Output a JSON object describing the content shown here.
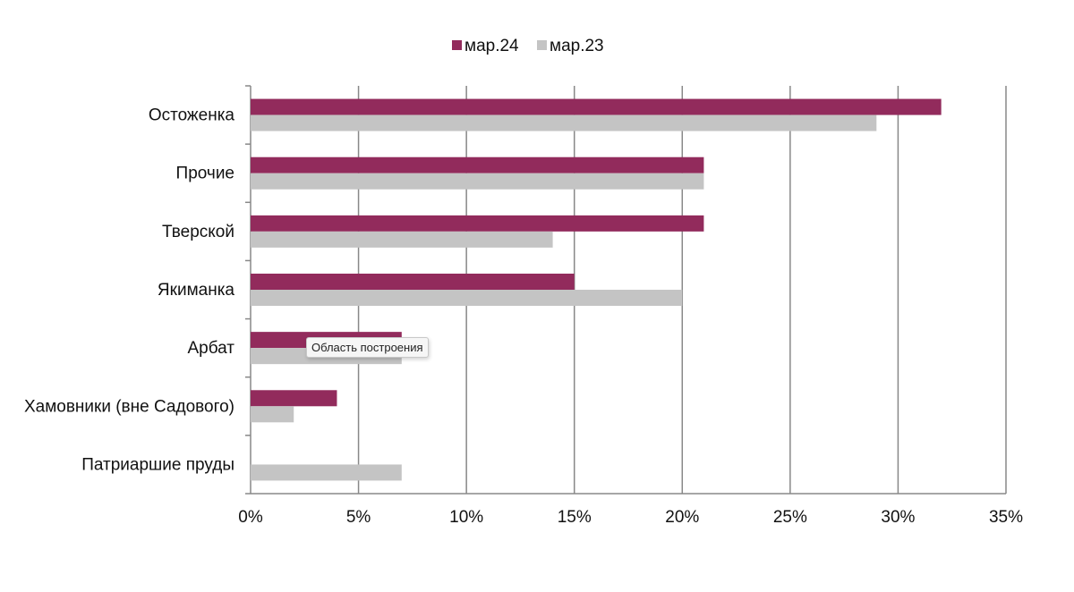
{
  "chart_data": {
    "type": "bar",
    "orientation": "horizontal",
    "title": "",
    "xlabel": "",
    "ylabel": "",
    "categories": [
      "Остоженка",
      "Прочие",
      "Тверской",
      "Якиманка",
      "Арбат",
      "Хамовники (вне Садового)",
      "Патриаршие пруды"
    ],
    "series": [
      {
        "name": "мар.24",
        "color": "#922b5c",
        "values": [
          32,
          21,
          21,
          15,
          7,
          4,
          0
        ]
      },
      {
        "name": "мар.23",
        "color": "#c4c4c4",
        "values": [
          29,
          21,
          14,
          20,
          7,
          2,
          7
        ]
      }
    ],
    "xlim": [
      0,
      35
    ],
    "xticks": [
      0,
      5,
      10,
      15,
      20,
      25,
      30,
      35
    ],
    "tick_suffix": "%",
    "grid": true,
    "legend_position": "top-center"
  },
  "tooltip": {
    "text": "Область построения"
  }
}
